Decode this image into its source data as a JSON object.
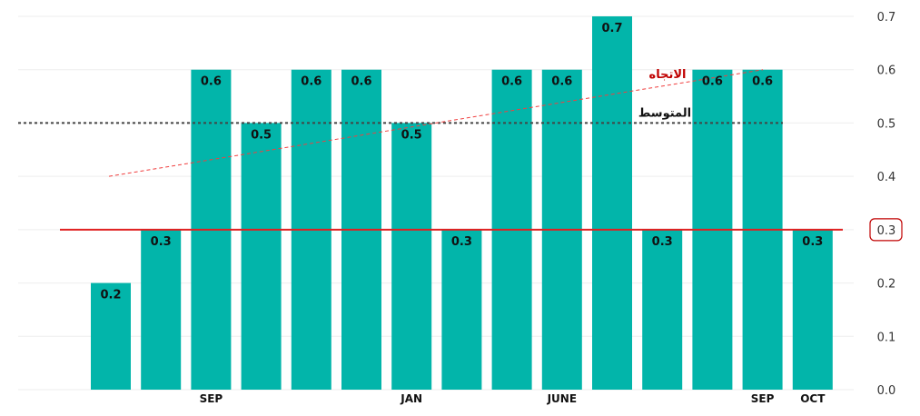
{
  "chart_data": {
    "type": "bar",
    "values": [
      0.2,
      0.3,
      0.6,
      0.5,
      0.6,
      0.6,
      0.5,
      0.3,
      0.6,
      0.6,
      0.7,
      0.3,
      0.6,
      0.6,
      0.3
    ],
    "x_labels": [
      "",
      "",
      "SEP",
      "",
      "",
      "",
      "JAN",
      "",
      "",
      "JUNE",
      "",
      "",
      "",
      "SEP",
      "OCT"
    ],
    "highlight_label_index": 14,
    "ylim": [
      0,
      0.7
    ],
    "yticks": [
      "0.0",
      "0.1",
      "0.2",
      "0.3",
      "0.4",
      "0.5",
      "0.6",
      "0.7"
    ],
    "highlight_ytick": "0.3",
    "reference_line": 0.3,
    "average_line": {
      "value": 0.5,
      "label": "المتوسط"
    },
    "trend_line": {
      "start": 0.4,
      "end": 0.6,
      "label": "الاتجاه"
    },
    "grid": true,
    "y_axis_position": "right",
    "colors": {
      "bar": "#02B5AA",
      "reference": "#E02020",
      "average": "#444444",
      "trend": "#F04040",
      "highlight": "#C00000",
      "grid": "#EEEEEE"
    }
  }
}
